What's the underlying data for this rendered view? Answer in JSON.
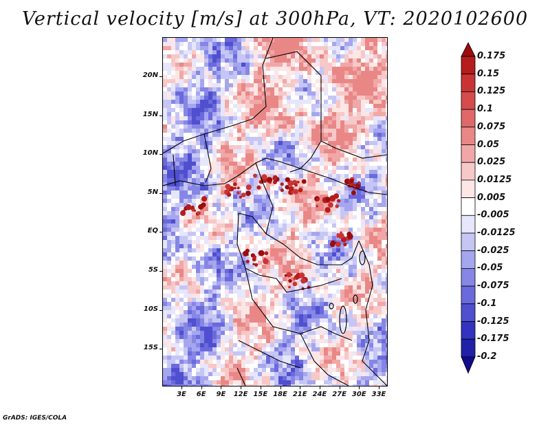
{
  "title": "Vertical velocity [m/s] at 300hPa, VT: 2020102600",
  "footer": "GrADS: IGES/COLA",
  "map": {
    "lat_labels": [
      "20N",
      "15N",
      "10N",
      "5N",
      "EQ",
      "5S",
      "10S",
      "15S"
    ],
    "lon_labels": [
      "3E",
      "6E",
      "9E",
      "12E",
      "15E",
      "18E",
      "21E",
      "24E",
      "27E",
      "30E",
      "33E"
    ]
  },
  "colorbar": {
    "labels": [
      "0.175",
      "0.15",
      "0.125",
      "0.1",
      "0.075",
      "0.05",
      "0.025",
      "0.0125",
      "0.005",
      "-0.005",
      "-0.0125",
      "-0.025",
      "-0.05",
      "-0.075",
      "-0.1",
      "-0.125",
      "-0.175",
      "-0.2"
    ],
    "colors": [
      "#9b0d0d",
      "#b51c1c",
      "#c83434",
      "#d64c4c",
      "#e06868",
      "#e98787",
      "#f1a7a7",
      "#f7c8c8",
      "#fce6e6",
      "#ffffff",
      "#e6e6fc",
      "#c6c6f5",
      "#a6a6ee",
      "#8686e6",
      "#6a6adc",
      "#4f4fd0",
      "#3333c0",
      "#2020a8",
      "#100c8a"
    ]
  }
}
